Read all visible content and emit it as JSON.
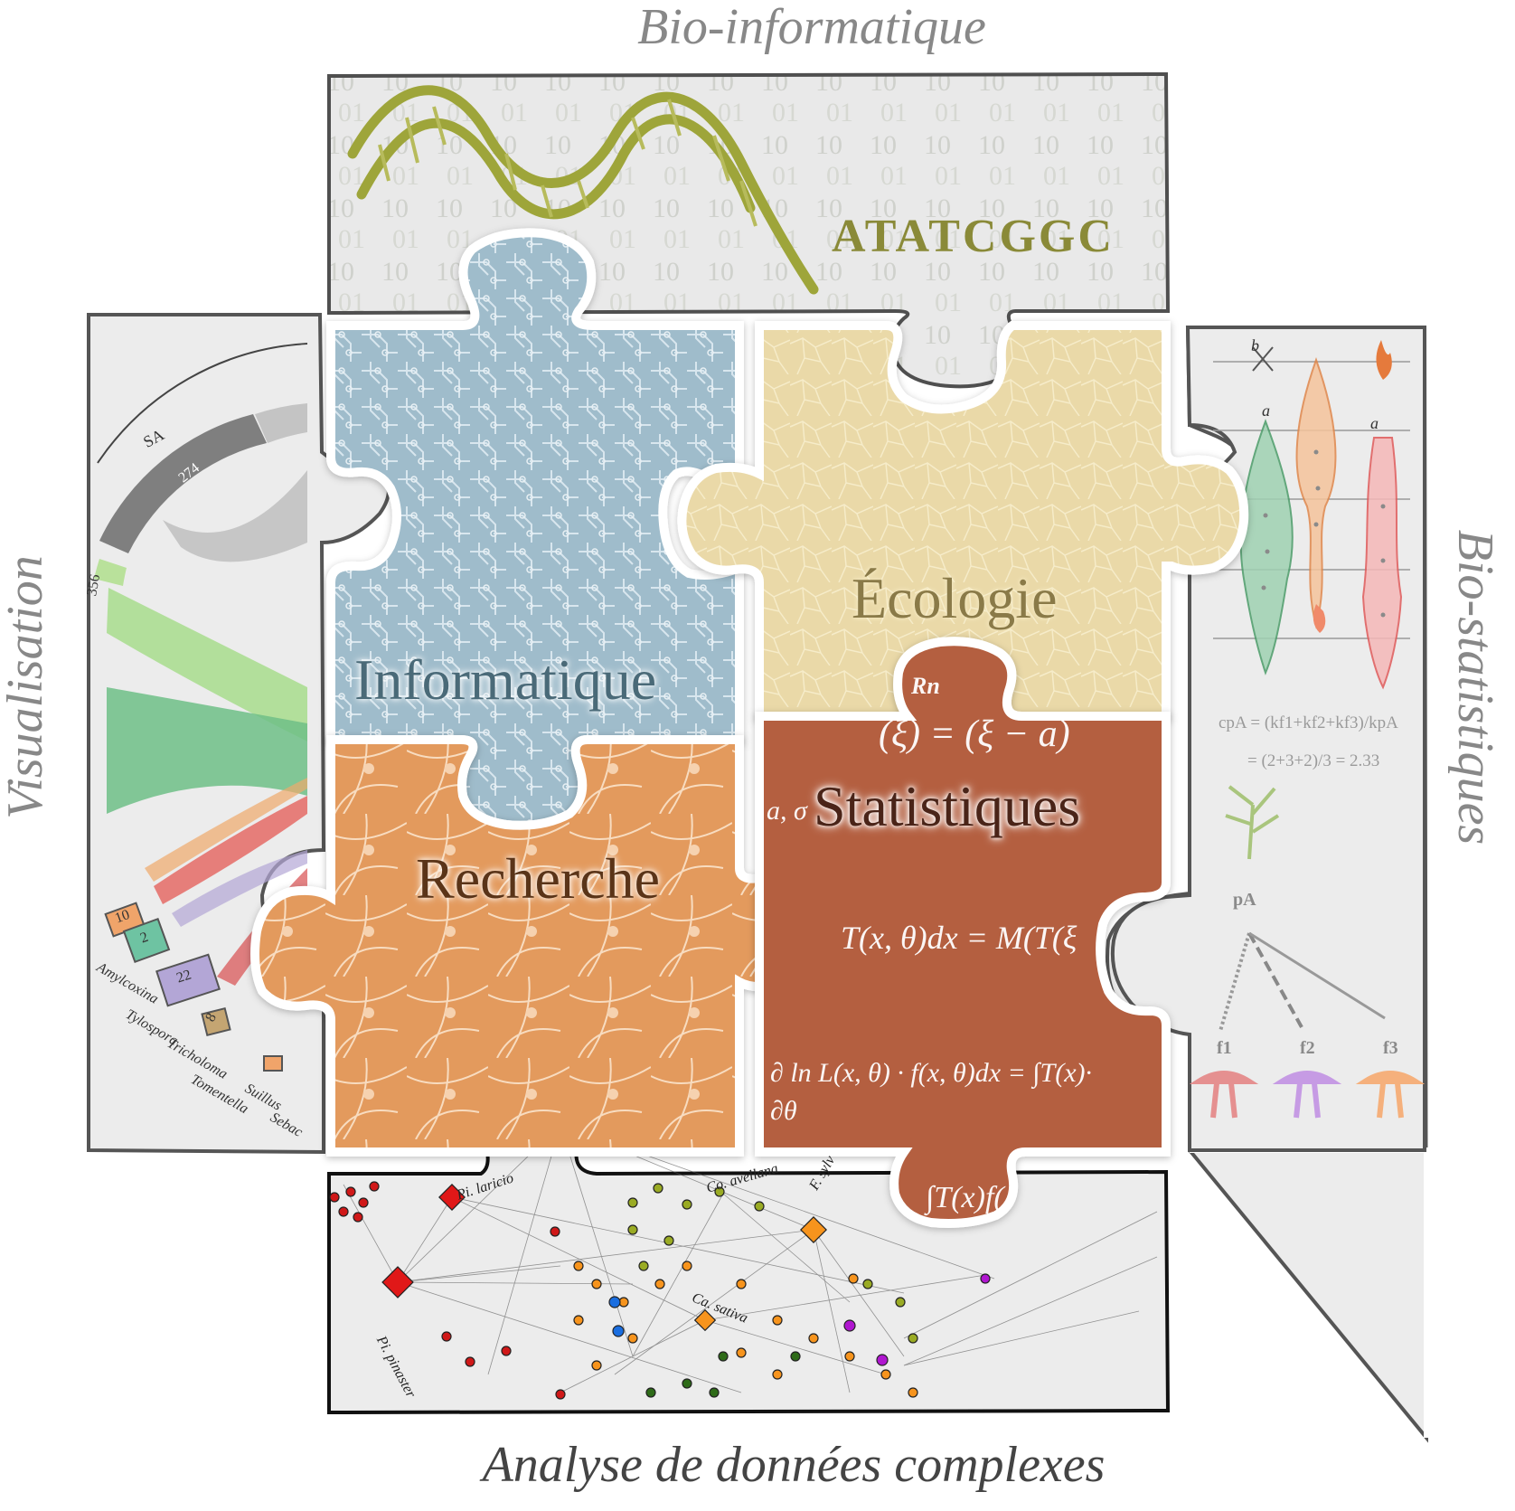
{
  "titles": {
    "top": "Bio-informatique",
    "left": "Visualisation",
    "right": "Bio-statistiques",
    "bottom": "Analyse de données complexes"
  },
  "pieces": {
    "informatique": "Informatique",
    "ecologie": "Écologie",
    "recherche": "Recherche",
    "statistiques": "Statistiques"
  },
  "bioinfo": {
    "sequence": "ATATCGGC"
  },
  "chord": {
    "arc_label": "SA",
    "values": [
      "274",
      "356",
      "10",
      "2",
      "22",
      "8"
    ],
    "genera": [
      "Amylcoxina",
      "Tylospora",
      "Tricholoma",
      "Tomentella",
      "Suillus",
      "Sebac"
    ]
  },
  "network": {
    "species": [
      "Pi. laricio",
      "Co. avellana",
      "F. sylv",
      "Ca. sativa",
      "Pi. pinaster"
    ]
  },
  "biostat": {
    "letters": [
      "b",
      "a",
      "a"
    ],
    "formula_line1": "cpA =  (kf1+kf2+kf3)/kpA",
    "formula_line2": "=  (2+3+2)/3 = 2.33",
    "node_label": "pA",
    "factor_labels": [
      "f1",
      "f2",
      "f3"
    ]
  },
  "equations": [
    "Rn",
    "(ξ) = (ξ − a)",
    "a, σ",
    "T(x, θ)dx = M(T(ξ",
    "∂ ln L(x, θ) · f(x, θ)dx = ∫T(x)·",
    "∂θ",
    "∫T(x)f("
  ],
  "colors": {
    "informatique": "#9fbccb",
    "ecologie": "#e9dcae",
    "recherche": "#e49a5e",
    "statistiques": "#b45f3f",
    "panel_bg": "#ececec",
    "outline": "#555555"
  }
}
